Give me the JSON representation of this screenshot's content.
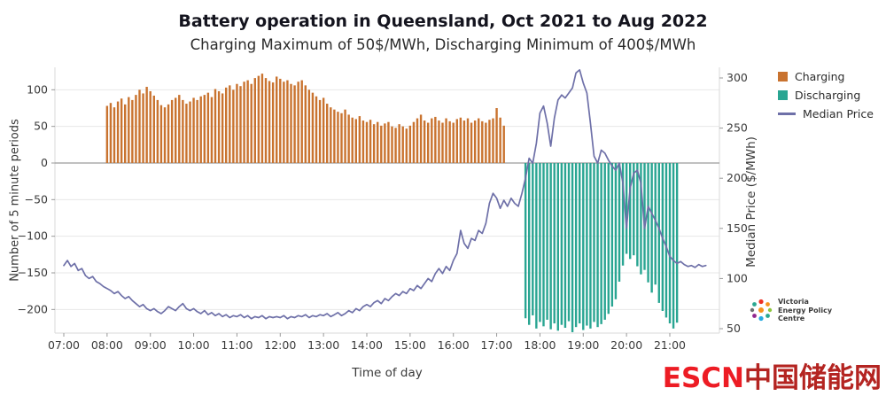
{
  "chart_data": {
    "type": "mixed",
    "title": "Battery operation in Queensland, Oct 2021 to Aug 2022",
    "subtitle": "Charging Maximum of 50$/MWh, Discharging Minimum of 400$/MWh",
    "xlabel": "Time of day",
    "ylabel_left": "Number of 5 minute periods",
    "ylabel_right": "Median Price ($/MWh)",
    "x_ticks": [
      "07:00",
      "08:00",
      "09:00",
      "10:00",
      "11:00",
      "12:00",
      "13:00",
      "14:00",
      "15:00",
      "16:00",
      "17:00",
      "18:00",
      "19:00",
      "20:00",
      "21:00"
    ],
    "yticks_left": [
      100,
      50,
      0,
      -50,
      -100,
      -150,
      -200
    ],
    "yticks_right": [
      300,
      250,
      200,
      150,
      100,
      50
    ],
    "ylim_left": [
      -240,
      130
    ],
    "ylim_right": [
      50,
      312
    ],
    "grid": "horizontal",
    "legend_position": "top-right",
    "series": [
      {
        "name": "Charging",
        "type": "bar",
        "axis": "left",
        "color": "#C9732F",
        "start": "08:00",
        "step_minutes": 5,
        "values": [
          78,
          82,
          76,
          84,
          88,
          80,
          90,
          86,
          93,
          100,
          95,
          104,
          98,
          92,
          86,
          79,
          76,
          80,
          86,
          89,
          93,
          86,
          81,
          84,
          89,
          86,
          91,
          93,
          96,
          90,
          101,
          98,
          95,
          103,
          106,
          100,
          108,
          105,
          111,
          113,
          108,
          116,
          119,
          122,
          116,
          112,
          110,
          118,
          115,
          111,
          113,
          108,
          106,
          111,
          113,
          106,
          100,
          96,
          91,
          86,
          89,
          81,
          76,
          73,
          70,
          68,
          73,
          66,
          62,
          60,
          64,
          58,
          56,
          59,
          53,
          56,
          51,
          54,
          56,
          50,
          48,
          53,
          50,
          47,
          51,
          56,
          61,
          66,
          58,
          55,
          61,
          63,
          58,
          55,
          61,
          57,
          55,
          60,
          62,
          58,
          61,
          55,
          58,
          61,
          57,
          55,
          59,
          61,
          75,
          62,
          51
        ]
      },
      {
        "name": "Discharging",
        "type": "bar",
        "axis": "left",
        "color": "#29A592",
        "start": "17:40",
        "step_minutes": 5,
        "values": [
          -212,
          -221,
          -208,
          -226,
          -217,
          -223,
          -214,
          -227,
          -219,
          -229,
          -221,
          -225,
          -216,
          -231,
          -224,
          -219,
          -228,
          -222,
          -226,
          -217,
          -224,
          -220,
          -214,
          -206,
          -196,
          -186,
          -162,
          -140,
          -124,
          -131,
          -126,
          -141,
          -152,
          -146,
          -163,
          -177,
          -166,
          -191,
          -202,
          -211,
          -219,
          -226,
          -218
        ]
      },
      {
        "name": "Median Price",
        "type": "line",
        "axis": "right",
        "color": "#6E70A8",
        "start": "07:00",
        "step_minutes": 5,
        "values": [
          113,
          118,
          112,
          115,
          108,
          110,
          103,
          100,
          102,
          97,
          95,
          92,
          90,
          88,
          85,
          87,
          83,
          80,
          82,
          78,
          75,
          72,
          74,
          70,
          68,
          70,
          67,
          65,
          68,
          72,
          70,
          68,
          72,
          75,
          70,
          68,
          70,
          67,
          65,
          68,
          64,
          66,
          63,
          65,
          62,
          64,
          61,
          63,
          62,
          64,
          61,
          63,
          60,
          62,
          61,
          63,
          60,
          62,
          61,
          62,
          61,
          63,
          60,
          62,
          61,
          63,
          62,
          64,
          61,
          63,
          62,
          64,
          63,
          65,
          62,
          64,
          66,
          63,
          65,
          68,
          66,
          70,
          68,
          72,
          74,
          72,
          76,
          78,
          75,
          80,
          78,
          82,
          85,
          83,
          87,
          85,
          90,
          88,
          93,
          90,
          95,
          100,
          97,
          105,
          110,
          105,
          112,
          108,
          118,
          125,
          148,
          135,
          130,
          140,
          138,
          148,
          145,
          155,
          175,
          185,
          180,
          170,
          178,
          172,
          180,
          175,
          172,
          185,
          200,
          220,
          215,
          235,
          265,
          272,
          255,
          232,
          260,
          278,
          283,
          280,
          285,
          290,
          305,
          308,
          295,
          285,
          255,
          222,
          215,
          228,
          225,
          218,
          212,
          208,
          215,
          195,
          150,
          190,
          205,
          208,
          195,
          150,
          172,
          165,
          158,
          150,
          140,
          132,
          122,
          118,
          115,
          117,
          114,
          112,
          113,
          111,
          114,
          112,
          113
        ]
      }
    ]
  },
  "branding": {
    "logo_lines": [
      "Victoria",
      "Energy Policy",
      "Centre"
    ]
  },
  "watermark": {
    "latin": "ESCN",
    "chinese": "中国储能网",
    "color_latin": "#ED1C24",
    "color_chinese": "#B42421"
  },
  "style": {
    "zero_line_color": "#9a9a9a",
    "grid_color": "#e7e7e7",
    "tick_color": "#999999"
  }
}
